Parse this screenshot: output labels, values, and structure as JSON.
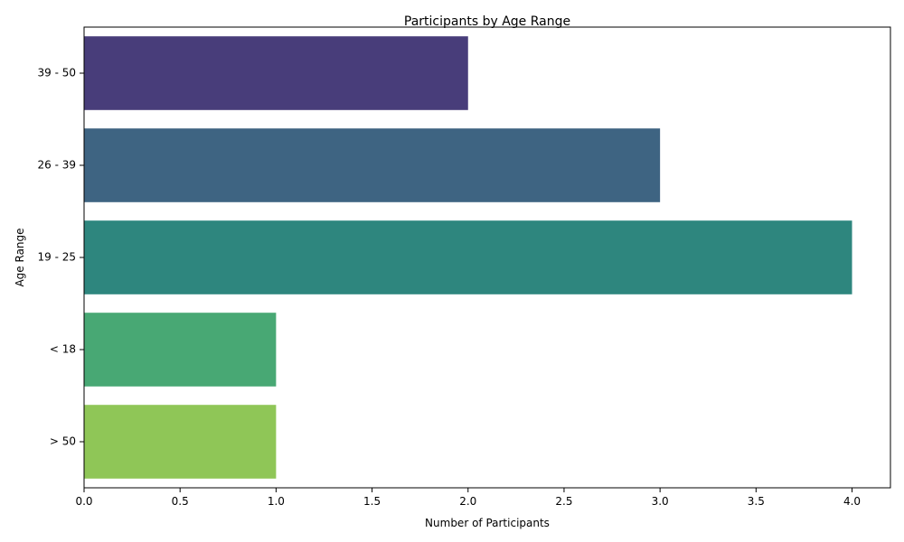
{
  "chart_data": {
    "type": "bar",
    "orientation": "horizontal",
    "title": "Participants by Age Range",
    "xlabel": "Number of Participants",
    "ylabel": "Age Range",
    "categories": [
      "39 - 50",
      "26 - 39",
      "19 - 25",
      "< 18",
      "> 50"
    ],
    "values": [
      2,
      3,
      4,
      1,
      1
    ],
    "colors": [
      "#483d7a",
      "#3e6482",
      "#2e867e",
      "#48a874",
      "#8fc657"
    ],
    "xlim": [
      0,
      4.2
    ],
    "xticks": [
      "0.0",
      "0.5",
      "1.0",
      "1.5",
      "2.0",
      "2.5",
      "3.0",
      "3.5",
      "4.0"
    ],
    "grid": false,
    "legend": "none"
  }
}
